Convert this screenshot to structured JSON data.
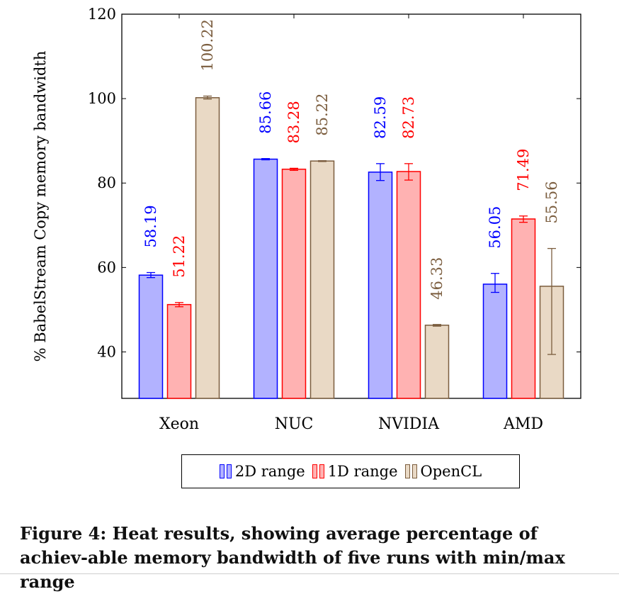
{
  "chart_data": {
    "type": "bar",
    "ylabel": "% BabelStream Copy memory bandwidth",
    "xlabel": "",
    "ylim": [
      29,
      120
    ],
    "yticks": [
      40,
      60,
      80,
      100,
      120
    ],
    "categories": [
      "Xeon",
      "NUC",
      "NVIDIA",
      "AMD"
    ],
    "series": [
      {
        "name": "2D range",
        "color": "#0000ff",
        "fill": "#b2b2ff",
        "values": [
          58.19,
          85.66,
          82.59,
          56.05
        ],
        "labels": [
          "58.19",
          "85.66",
          "82.59",
          "56.05"
        ],
        "min": [
          57.6,
          85.5,
          80.6,
          54.1
        ],
        "max": [
          58.8,
          85.8,
          84.6,
          58.6
        ]
      },
      {
        "name": "1D range",
        "color": "#ff0000",
        "fill": "#ffb2b2",
        "values": [
          51.22,
          83.28,
          82.73,
          71.49
        ],
        "labels": [
          "51.22",
          "83.28",
          "82.73",
          "71.49"
        ],
        "min": [
          50.7,
          83.0,
          80.7,
          70.7
        ],
        "max": [
          51.7,
          83.5,
          84.6,
          72.2
        ]
      },
      {
        "name": "OpenCL",
        "color": "#7b5d3e",
        "fill": "#e9d9c5",
        "values": [
          100.22,
          85.22,
          46.33,
          55.56
        ],
        "labels": [
          "100.22",
          "85.22",
          "46.33",
          "55.56"
        ],
        "min": [
          99.9,
          85.1,
          46.1,
          39.4
        ],
        "max": [
          100.6,
          85.3,
          46.5,
          64.5
        ]
      }
    ],
    "legend_position": "bottom-center",
    "grid": false
  },
  "caption": "Figure 4: Heat results, showing average percentage of achiev-able memory bandwidth of five runs with min/max range"
}
